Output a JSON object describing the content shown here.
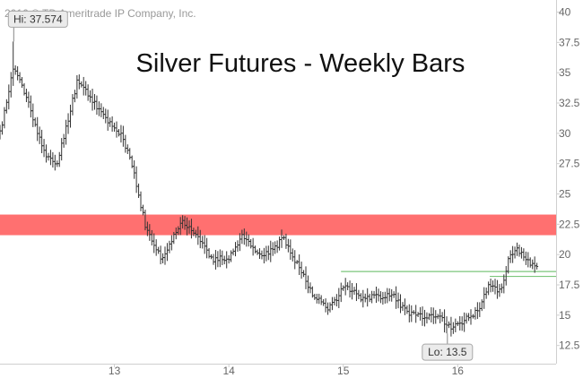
{
  "copyright": "2016 © TD Ameritrade IP Company, Inc.",
  "chart_data": {
    "type": "ohlc",
    "title": "Silver Futures - Weekly Bars",
    "frequency": "weekly",
    "x_range": [
      2012.0,
      2016.86
    ],
    "x_ticks": [
      {
        "value": 2013,
        "label": "13"
      },
      {
        "value": 2014,
        "label": "14"
      },
      {
        "value": 2015,
        "label": "15"
      },
      {
        "value": 2016,
        "label": "16"
      }
    ],
    "y_range": [
      11.0,
      41.0
    ],
    "y_ticks": [
      12.5,
      15,
      17.5,
      20,
      22.5,
      25,
      27.5,
      30,
      32.5,
      35,
      37.5,
      40
    ],
    "y_tick_labels": [
      "12.5",
      "15",
      "17.5",
      "20",
      "22.5",
      "25",
      "27.5",
      "30",
      "32.5",
      "35",
      "37.5",
      "40"
    ],
    "resistance_zone": {
      "low": 21.6,
      "high": 23.3,
      "color": "#ff6060"
    },
    "support_lines": [
      {
        "value": 18.6,
        "x_start": 2014.98,
        "x_end": 2016.86,
        "color": "#7cc67c"
      },
      {
        "value": 18.2,
        "x_start": 2016.28,
        "x_end": 2016.86,
        "color": "#7cc67c"
      }
    ],
    "annotations": [
      {
        "label": "Hi: 37.574",
        "x": 2012.12,
        "y": 37.574
      },
      {
        "label": "Lo: 13.5",
        "x": 2015.91,
        "y": 13.5
      }
    ],
    "key_points": [
      {
        "x": 2012.0,
        "y": 30.0
      },
      {
        "x": 2012.12,
        "y": 35.5
      },
      {
        "x": 2012.25,
        "y": 32.5
      },
      {
        "x": 2012.4,
        "y": 28.0
      },
      {
        "x": 2012.5,
        "y": 27.5
      },
      {
        "x": 2012.68,
        "y": 34.5
      },
      {
        "x": 2012.9,
        "y": 31.5
      },
      {
        "x": 2013.05,
        "y": 30.0
      },
      {
        "x": 2013.15,
        "y": 27.5
      },
      {
        "x": 2013.28,
        "y": 22.0
      },
      {
        "x": 2013.42,
        "y": 19.5
      },
      {
        "x": 2013.58,
        "y": 22.8
      },
      {
        "x": 2013.62,
        "y": 22.5
      },
      {
        "x": 2013.72,
        "y": 21.8
      },
      {
        "x": 2013.85,
        "y": 19.5
      },
      {
        "x": 2014.0,
        "y": 19.8
      },
      {
        "x": 2014.12,
        "y": 21.5
      },
      {
        "x": 2014.3,
        "y": 19.8
      },
      {
        "x": 2014.48,
        "y": 21.3
      },
      {
        "x": 2014.6,
        "y": 19.2
      },
      {
        "x": 2014.75,
        "y": 16.5
      },
      {
        "x": 2014.87,
        "y": 15.5
      },
      {
        "x": 2015.02,
        "y": 17.5
      },
      {
        "x": 2015.15,
        "y": 16.5
      },
      {
        "x": 2015.3,
        "y": 16.5
      },
      {
        "x": 2015.42,
        "y": 16.8
      },
      {
        "x": 2015.55,
        "y": 15.3
      },
      {
        "x": 2015.7,
        "y": 14.8
      },
      {
        "x": 2015.85,
        "y": 14.8
      },
      {
        "x": 2015.94,
        "y": 14.0
      },
      {
        "x": 2016.05,
        "y": 14.5
      },
      {
        "x": 2016.18,
        "y": 15.5
      },
      {
        "x": 2016.28,
        "y": 17.5
      },
      {
        "x": 2016.38,
        "y": 17.0
      },
      {
        "x": 2016.45,
        "y": 20.0
      },
      {
        "x": 2016.52,
        "y": 20.5
      },
      {
        "x": 2016.62,
        "y": 19.3
      },
      {
        "x": 2016.7,
        "y": 19.2
      }
    ]
  }
}
